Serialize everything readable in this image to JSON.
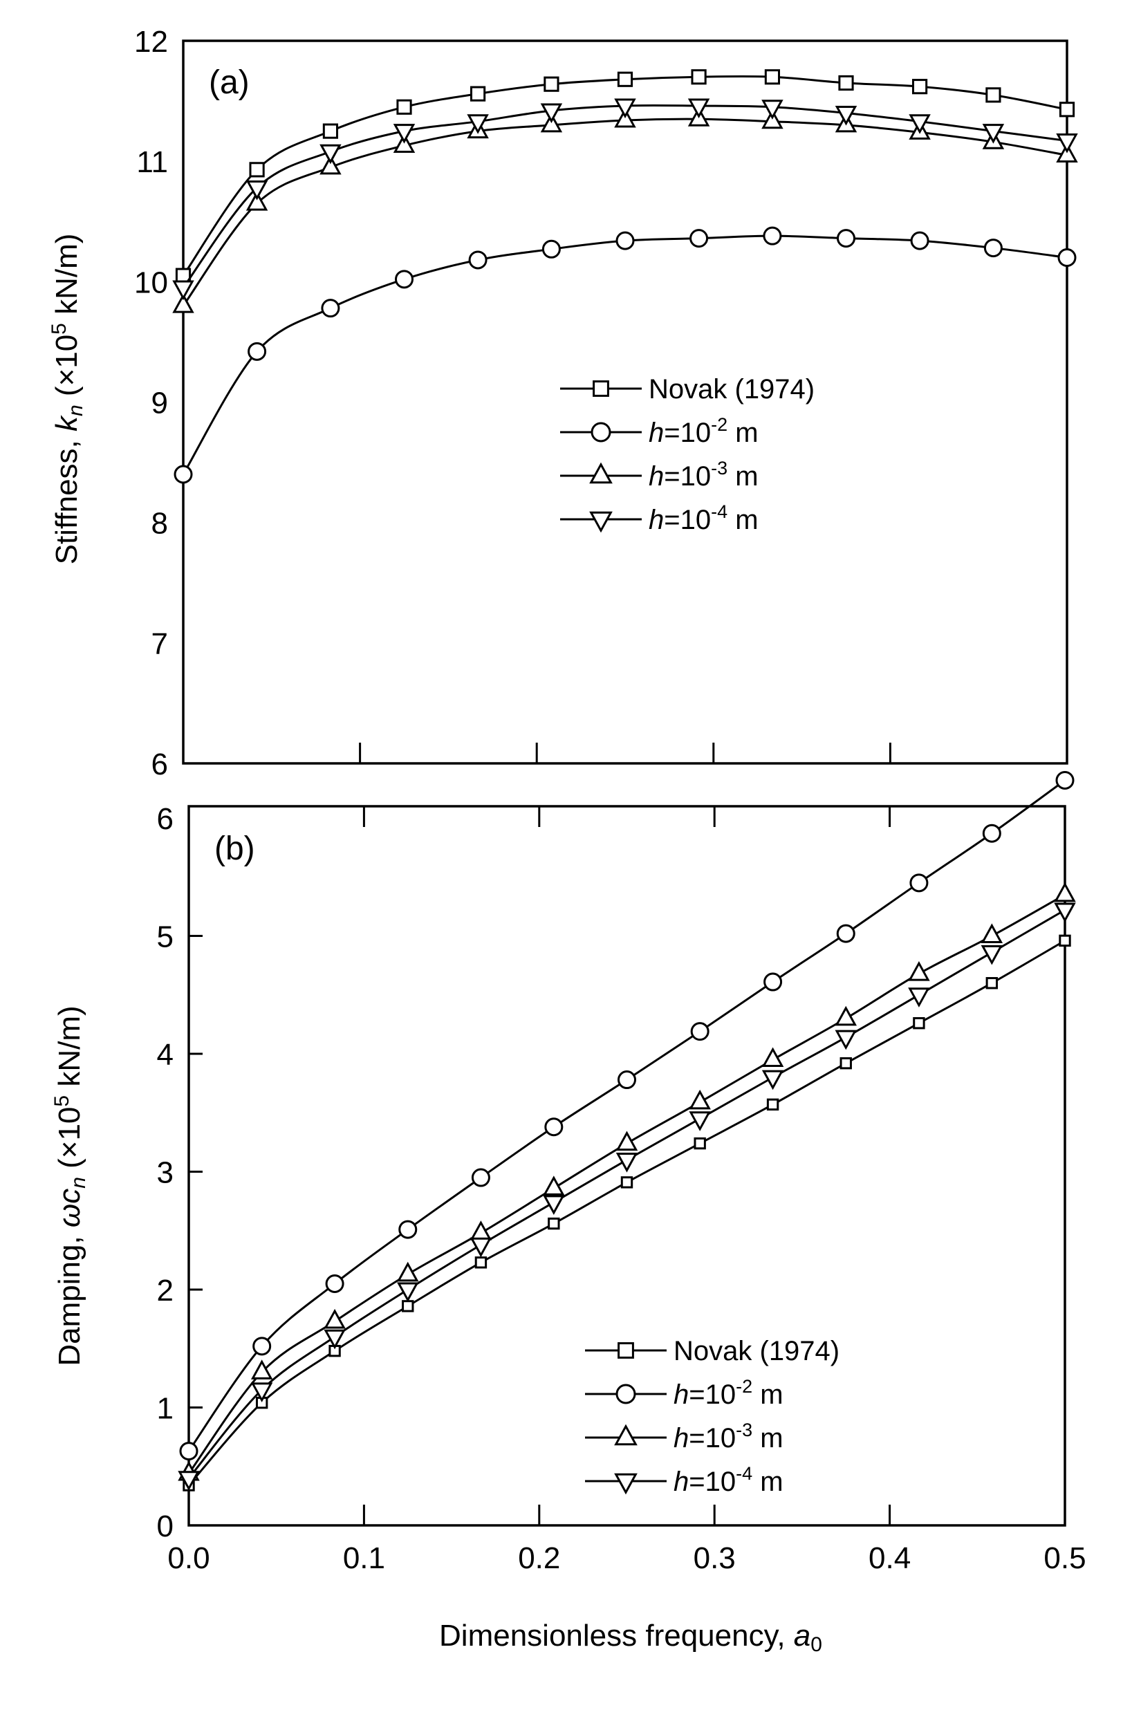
{
  "chart_data": [
    {
      "type": "line",
      "panel_label": "(a)",
      "xlabel": "",
      "ylabel": {
        "prefix": "Stiffness, ",
        "var": "k",
        "sub": "n",
        "unit_pre": " (×10",
        "exp": "5",
        "unit_post": " kN/m)"
      },
      "xlim": [
        0,
        0.5
      ],
      "ylim": [
        6,
        12
      ],
      "yticks": [
        "6",
        "7",
        "8",
        "9",
        "10",
        "11",
        "12"
      ],
      "xticks": [
        0.1,
        0.2,
        0.3,
        0.4
      ],
      "grid": false,
      "legend_placement": "center-right",
      "x": [
        0,
        0.0417,
        0.0833,
        0.125,
        0.1667,
        0.2083,
        0.25,
        0.2917,
        0.3333,
        0.375,
        0.4167,
        0.4583,
        0.5
      ],
      "series": [
        {
          "name": "Novak (1974)",
          "marker": "square",
          "values": [
            10.05,
            10.93,
            11.25,
            11.45,
            11.56,
            11.64,
            11.68,
            11.7,
            11.7,
            11.65,
            11.62,
            11.55,
            11.43
          ]
        },
        {
          "name": "h=10-2 m",
          "marker": "circle",
          "values": [
            8.4,
            9.42,
            9.78,
            10.02,
            10.18,
            10.27,
            10.34,
            10.36,
            10.38,
            10.36,
            10.34,
            10.28,
            10.2
          ]
        },
        {
          "name": "h=10-3 m",
          "marker": "triangle-up",
          "values": [
            9.8,
            10.65,
            10.95,
            11.13,
            11.25,
            11.3,
            11.34,
            11.35,
            11.33,
            11.3,
            11.24,
            11.16,
            11.05
          ]
        },
        {
          "name": "h=10-4 m",
          "marker": "triangle-down",
          "values": [
            9.95,
            10.78,
            11.08,
            11.25,
            11.33,
            11.42,
            11.46,
            11.46,
            11.45,
            11.4,
            11.33,
            11.25,
            11.17
          ]
        }
      ]
    },
    {
      "type": "line",
      "panel_label": "(b)",
      "xlabel": {
        "text": "Dimensionless frequency, ",
        "var": "a",
        "sub": "0"
      },
      "ylabel": {
        "prefix": "Damping, ",
        "var": "ωc",
        "sub": "n",
        "unit_pre": " (×10",
        "exp": "5",
        "unit_post": " kN/m)"
      },
      "xlim": [
        0,
        0.5
      ],
      "ylim": [
        0,
        6.1
      ],
      "yticks": [
        "0",
        "1",
        "2",
        "3",
        "4",
        "5",
        "6"
      ],
      "xticks": [
        "0.0",
        "0.1",
        "0.2",
        "0.3",
        "0.4",
        "0.5"
      ],
      "grid": false,
      "legend_placement": "lower-right",
      "x": [
        0,
        0.0417,
        0.0833,
        0.125,
        0.1667,
        0.2083,
        0.25,
        0.2917,
        0.3333,
        0.375,
        0.4167,
        0.4583,
        0.5
      ],
      "series": [
        {
          "name": "Novak (1974)",
          "marker": "square",
          "values": [
            0.34,
            1.04,
            1.48,
            1.86,
            2.23,
            2.56,
            2.91,
            3.24,
            3.57,
            3.92,
            4.26,
            4.6,
            4.96
          ]
        },
        {
          "name": "h=10-2 m",
          "marker": "circle",
          "values": [
            0.63,
            1.52,
            2.05,
            2.51,
            2.95,
            3.38,
            3.78,
            4.19,
            4.61,
            5.02,
            5.45,
            5.87,
            6.32
          ]
        },
        {
          "name": "h=10-3 m",
          "marker": "triangle-up",
          "values": [
            0.44,
            1.3,
            1.73,
            2.13,
            2.48,
            2.86,
            3.24,
            3.59,
            3.95,
            4.3,
            4.68,
            5.0,
            5.35
          ]
        },
        {
          "name": "h=10-4 m",
          "marker": "triangle-down",
          "values": [
            0.4,
            1.15,
            1.6,
            2.0,
            2.38,
            2.74,
            3.1,
            3.45,
            3.8,
            4.14,
            4.5,
            4.86,
            5.22
          ]
        }
      ]
    }
  ],
  "legend": [
    {
      "label": "Novak (1974)"
    },
    {
      "pre": "h",
      "mid": "=10",
      "exp": "-2",
      "post": " m"
    },
    {
      "pre": "h",
      "mid": "=10",
      "exp": "-3",
      "post": " m"
    },
    {
      "pre": "h",
      "mid": "=10",
      "exp": "-4",
      "post": " m"
    }
  ]
}
